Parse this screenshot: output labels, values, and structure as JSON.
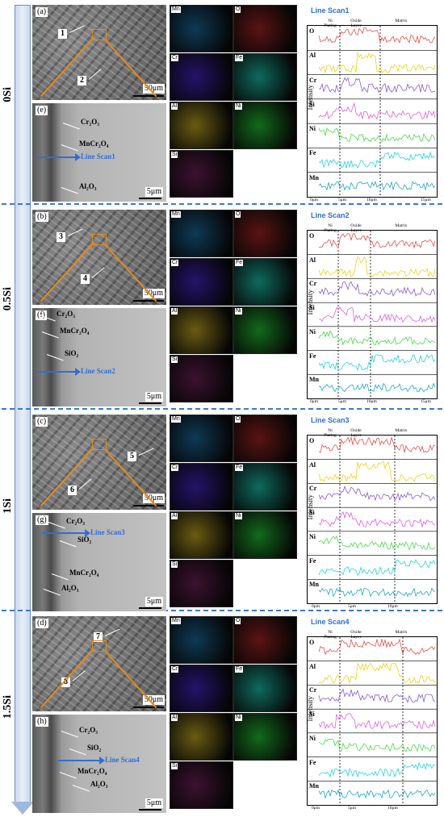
{
  "groups": [
    {
      "label": "0Si",
      "sem": {
        "letter": "(a)",
        "scale": "50μm",
        "points": [
          "1",
          "2"
        ]
      },
      "xsec": {
        "letter": "(e)",
        "scale": "5μm",
        "scan_label": "Line Scan1",
        "phases": [
          "Cr",
          "O",
          "MnCr",
          "O",
          "Al",
          "O"
        ]
      },
      "eds": [
        "Mn",
        "O",
        "Cr",
        "Fe",
        "Al",
        "Ni",
        "Si"
      ],
      "linescan": {
        "title": "Line Scan1",
        "headers": [
          "Ni\nPlating",
          "Oxide\nLayer",
          "Matrix"
        ],
        "ticks": [
          "0μm",
          "5μm",
          "10μm",
          "15μm"
        ]
      }
    },
    {
      "label": "0.5Si",
      "sem": {
        "letter": "(b)",
        "scale": "50μm",
        "points": [
          "3",
          "4"
        ]
      },
      "xsec": {
        "letter": "(f)",
        "scale": "5μm",
        "scan_label": "Line Scan2"
      },
      "eds": [
        "Mn",
        "O",
        "Cr",
        "Fe",
        "Al",
        "Ni",
        "Si"
      ],
      "linescan": {
        "title": "Line Scan2",
        "headers": [
          "Ni\nPlating",
          "Oxide\nLayer",
          "Matrix"
        ],
        "ticks": [
          "0μm",
          "5μm",
          "10μm",
          "15μm"
        ]
      }
    },
    {
      "label": "1Si",
      "sem": {
        "letter": "(c)",
        "scale": "50μm",
        "points": [
          "5",
          "6"
        ]
      },
      "xsec": {
        "letter": "(g)",
        "scale": "5μm",
        "scan_label": "Line Scan3"
      },
      "eds": [
        "Mn",
        "O",
        "Cr",
        "Fe",
        "Al",
        "Ni",
        "Si"
      ],
      "linescan": {
        "title": "Line Scan3",
        "headers": [
          "Ni\nPlating",
          "Oxide\nLayer",
          "Matrix"
        ],
        "ticks": [
          "0μm",
          "5μm",
          "10μm"
        ]
      }
    },
    {
      "label": "1.5Si",
      "sem": {
        "letter": "(d)",
        "scale": "50μm",
        "points": [
          "7",
          "8"
        ]
      },
      "xsec": {
        "letter": "(h)",
        "scale": "5μm",
        "scan_label": "Line Scan4"
      },
      "eds": [
        "Mn",
        "O",
        "Cr",
        "Fe",
        "Al",
        "Ni",
        "Si"
      ],
      "linescan": {
        "title": "Line Scan4",
        "headers": [
          "Ni\nPlating",
          "Oxide\nLayer",
          "Matrix"
        ],
        "ticks": [
          "0μm",
          "5μm",
          "10μm"
        ]
      }
    }
  ],
  "phase_labels": {
    "cr2o3": "Cr₂O₃",
    "mncr2o4": "MnCr₂O₄",
    "al2o3": "Al₂O₃",
    "sio2": "SiO₂"
  },
  "linescan_elements": [
    "O",
    "Al",
    "Cr",
    "Si",
    "Ni",
    "Fe",
    "Mn"
  ],
  "y_axis_label": "Intensity",
  "colors": {
    "O": "#e8504a",
    "Al": "#f0d21e",
    "Cr": "#8a5ad2",
    "Si": "#e35ee3",
    "Ni": "#4bd84b",
    "Fe": "#27d3e0",
    "Mn": "#1fa8c8",
    "divider": "#3a78d4",
    "scan_arrow": "#2f6fd6",
    "zoom": "#e48a1e"
  },
  "eds_colors": {
    "Mn": "#0e3a55",
    "O": "#5a1414",
    "Cr": "#24146a",
    "Fe": "#0f6a5e",
    "Al": "#6a5c12",
    "Ni": "#126a1c",
    "Si": "#3c1230"
  }
}
